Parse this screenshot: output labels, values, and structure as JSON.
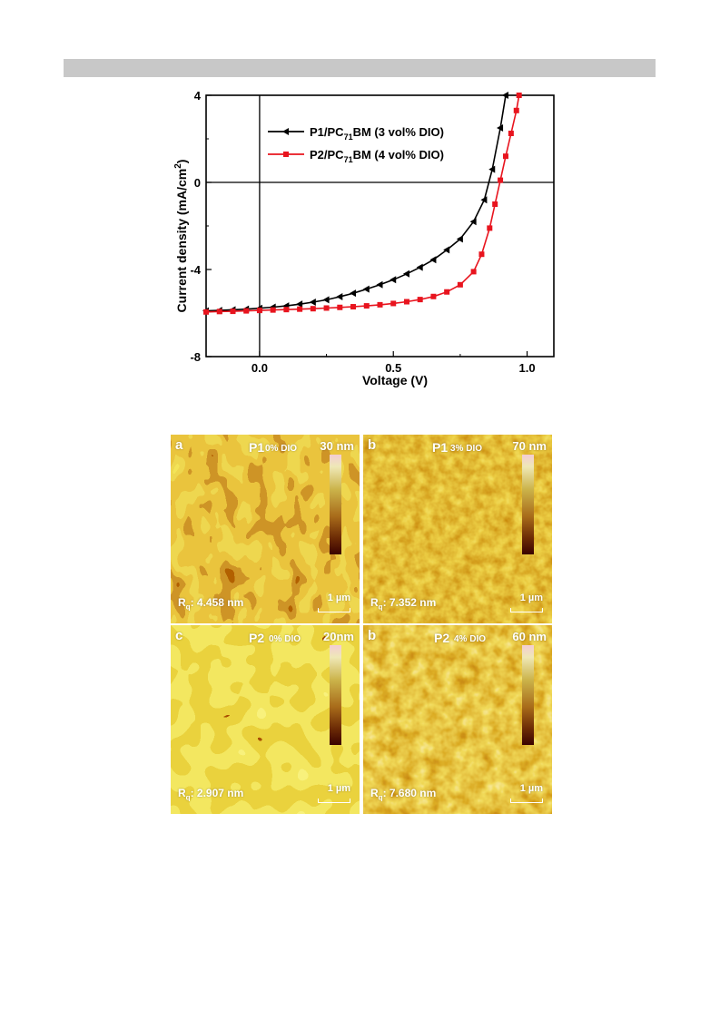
{
  "chart_data": {
    "type": "line",
    "xlabel": "Voltage (V)",
    "ylabel_parts": {
      "main": "Current density (mA/cm",
      "sup": "2",
      "end": ")"
    },
    "xlim": [
      -0.2,
      1.1
    ],
    "ylim": [
      -8,
      4
    ],
    "x_ticks": [
      "0.0",
      "0.5",
      "1.0"
    ],
    "x_tick_values": [
      0.0,
      0.5,
      1.0
    ],
    "y_ticks": [
      "4",
      "0",
      "-4",
      "-8"
    ],
    "y_tick_values": [
      4,
      0,
      -4,
      -8
    ],
    "series": [
      {
        "name": "P1/PC71BM (3 vol% DIO)",
        "legend": {
          "pre": "P1/PC",
          "sub": "71",
          "post": "BM (3 vol% DIO)"
        },
        "color": "#000000",
        "marker": "left-triangle",
        "x": [
          -0.2,
          -0.15,
          -0.1,
          -0.05,
          0.0,
          0.05,
          0.1,
          0.15,
          0.2,
          0.25,
          0.3,
          0.35,
          0.4,
          0.45,
          0.5,
          0.55,
          0.6,
          0.65,
          0.7,
          0.75,
          0.8,
          0.84,
          0.87,
          0.9,
          0.92
        ],
        "y": [
          -5.9,
          -5.88,
          -5.85,
          -5.82,
          -5.78,
          -5.73,
          -5.67,
          -5.59,
          -5.5,
          -5.39,
          -5.25,
          -5.09,
          -4.9,
          -4.7,
          -4.47,
          -4.2,
          -3.9,
          -3.55,
          -3.1,
          -2.6,
          -1.8,
          -0.8,
          0.6,
          2.5,
          4.0
        ]
      },
      {
        "name": "P2/PC71BM (4 vol% DIO)",
        "legend": {
          "pre": "P2/PC",
          "sub": "71",
          "post": "BM (4 vol% DIO)"
        },
        "color": "#e8141e",
        "marker": "square",
        "x": [
          -0.2,
          -0.15,
          -0.1,
          -0.05,
          0.0,
          0.05,
          0.1,
          0.15,
          0.2,
          0.25,
          0.3,
          0.35,
          0.4,
          0.45,
          0.5,
          0.55,
          0.6,
          0.65,
          0.7,
          0.75,
          0.8,
          0.83,
          0.86,
          0.88,
          0.9,
          0.92,
          0.94,
          0.96,
          0.97
        ],
        "y": [
          -5.95,
          -5.93,
          -5.92,
          -5.9,
          -5.88,
          -5.86,
          -5.84,
          -5.82,
          -5.8,
          -5.77,
          -5.74,
          -5.71,
          -5.67,
          -5.62,
          -5.56,
          -5.48,
          -5.38,
          -5.24,
          -5.03,
          -4.7,
          -4.1,
          -3.3,
          -2.1,
          -1.0,
          0.1,
          1.2,
          2.25,
          3.3,
          4.0
        ]
      }
    ]
  },
  "afm_panels": [
    {
      "letter": "a",
      "polymer": "P1",
      "dio": "0% DIO",
      "z_scale": "30 nm",
      "rq_pre": "R",
      "rq_sub": "q",
      "rq_value": ": 4.458 nm",
      "scale_bar": "1 µm"
    },
    {
      "letter": "b",
      "polymer": "P1",
      "dio": "3% DIO",
      "z_scale": "70 nm",
      "rq_pre": "R",
      "rq_sub": "q",
      "rq_value": ": 7.352 nm",
      "scale_bar": "1 µm"
    },
    {
      "letter": "c",
      "polymer": "P2",
      "dio": "0% DIO",
      "z_scale": "20nm",
      "rq_pre": "R",
      "rq_sub": "q",
      "rq_value": ": 2.907 nm",
      "scale_bar": "1 µm"
    },
    {
      "letter": "b",
      "polymer": "P2",
      "dio": "4% DIO",
      "z_scale": "60 nm",
      "rq_pre": "R",
      "rq_sub": "q",
      "rq_value": ": 7.680 nm",
      "scale_bar": "1 µm"
    }
  ]
}
